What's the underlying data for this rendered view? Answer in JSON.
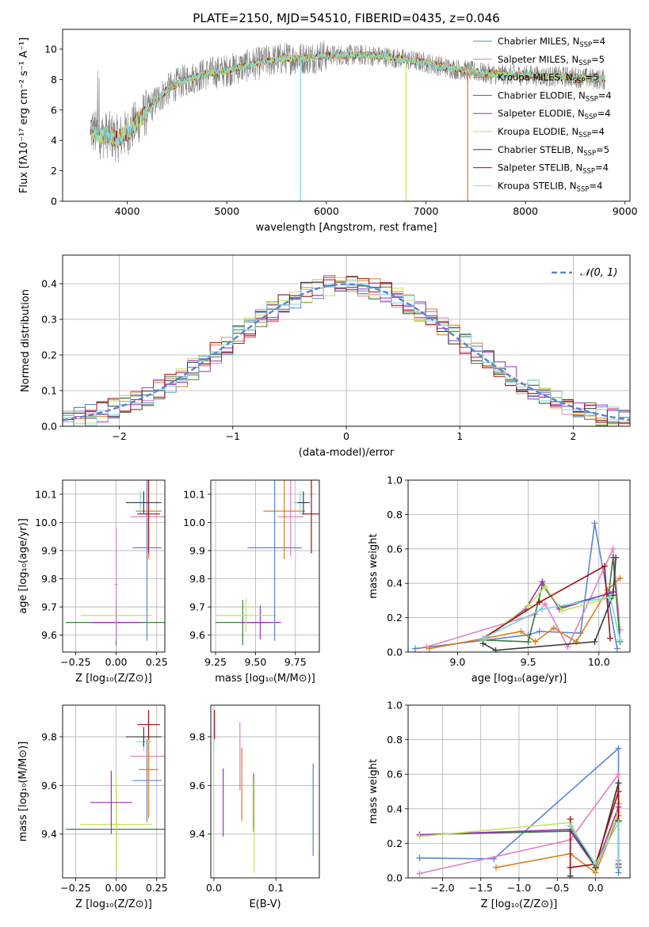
{
  "title": "PLATE=2150, MJD=54510, FIBERID=0435, z=0.046",
  "colors": {
    "chabrier_miles": "#5b84d6",
    "salpeter_miles": "#e27fbf",
    "kroupa_miles": "#e07b20",
    "chabrier_elodie": "#3e7a3e",
    "salpeter_elodie": "#9b2fbf",
    "kroupa_elodie": "#c8e25a",
    "chabrier_stelib": "#3a3a3a",
    "salpeter_stelib": "#a50f15",
    "kroupa_stelib": "#7fd6df",
    "data": "#808080",
    "normal": "#5b84d6"
  },
  "legend": [
    {
      "label": "Chabrier MILES, N",
      "sub": "SSP",
      "tail": "=4",
      "color": "#5b84d6"
    },
    {
      "label": "Salpeter MILES, N",
      "sub": "SSP",
      "tail": "=5",
      "color": "#e27fbf"
    },
    {
      "label": "Kroupa MILES, N",
      "sub": "SSP",
      "tail": "=5",
      "color": "#e07b20"
    },
    {
      "label": "Chabrier ELODIE, N",
      "sub": "SSP",
      "tail": "=4",
      "color": "#3e7a3e"
    },
    {
      "label": "Salpeter ELODIE, N",
      "sub": "SSP",
      "tail": "=4",
      "color": "#9b2fbf"
    },
    {
      "label": "Kroupa ELODIE, N",
      "sub": "SSP",
      "tail": "=4",
      "color": "#c8e25a"
    },
    {
      "label": "Chabrier STELIB, N",
      "sub": "SSP",
      "tail": "=5",
      "color": "#3a3a3a"
    },
    {
      "label": "Salpeter STELIB, N",
      "sub": "SSP",
      "tail": "=4",
      "color": "#a50f15"
    },
    {
      "label": "Kroupa STELIB, N",
      "sub": "SSP",
      "tail": "=4",
      "color": "#7fd6df"
    }
  ],
  "chart_data": [
    {
      "id": "spectrum",
      "type": "line",
      "xlabel": "wavelength [Angstrom, rest frame]",
      "ylabel": "Flux [fλ10⁻¹⁷ erg cm⁻² s⁻¹ A⁻¹]",
      "xlim": [
        3350,
        9050
      ],
      "ylim": [
        0,
        11.3
      ],
      "xticks": [
        4000,
        5000,
        6000,
        7000,
        8000,
        9000
      ],
      "yticks": [
        0,
        2,
        4,
        6,
        8,
        10
      ],
      "continuum": {
        "x": [
          3630,
          3700,
          3800,
          3900,
          4000,
          4100,
          4200,
          4300,
          4400,
          4500,
          4600,
          4700,
          4800,
          4900,
          5000,
          5200,
          5400,
          5600,
          5800,
          6000,
          6200,
          6400,
          6600,
          6800,
          7000,
          7200,
          7400,
          7600,
          7800,
          8000,
          8200,
          8400,
          8600,
          8800
        ],
        "y": [
          4.8,
          4.3,
          4.4,
          4.1,
          4.5,
          5.2,
          5.9,
          6.7,
          7.3,
          7.7,
          8.0,
          8.2,
          8.4,
          8.5,
          8.6,
          8.9,
          9.2,
          9.4,
          9.4,
          9.6,
          9.6,
          9.6,
          9.5,
          9.3,
          9.1,
          8.8,
          8.6,
          8.4,
          8.3,
          8.3,
          8.2,
          8.2,
          8.1,
          8.0
        ]
      },
      "dips": [
        {
          "x": 5740,
          "color": "#7fd6df"
        },
        {
          "x": 6800,
          "color": "#c8e25a"
        },
        {
          "x": 7420,
          "color": "#e07b20"
        }
      ]
    },
    {
      "id": "residuals",
      "type": "histogram",
      "xlabel": "(data-model)/error",
      "ylabel": "Normed distribution",
      "xlim": [
        -2.5,
        2.5
      ],
      "ylim": [
        0,
        0.48
      ],
      "xticks": [
        -2,
        -1,
        0,
        1,
        2
      ],
      "yticks": [
        0.0,
        0.1,
        0.2,
        0.3,
        0.4
      ],
      "reference_label": "𝒩(0, 1)",
      "bin_width": 0.1
    },
    {
      "id": "age_vs_Z",
      "type": "errorbar",
      "xlabel": "Z [log₁₀(Z/Z⊙)]",
      "ylabel": "age  [log₁₀(age/yr)]",
      "xlim": [
        -0.33,
        0.3
      ],
      "ylim": [
        9.54,
        10.15
      ],
      "xticks": [
        -0.25,
        0.0,
        0.25
      ],
      "xtick_labels": [
        "−0.25",
        "0.00",
        "0.25"
      ],
      "yticks": [
        9.6,
        9.7,
        9.8,
        9.9,
        10.0,
        10.1
      ],
      "points": [
        {
          "x": 0.0,
          "y": 9.645,
          "xerr": 0.31,
          "yerr": 0.08,
          "color": "#3e7a3e"
        },
        {
          "x": 0.0,
          "y": 9.645,
          "xerr": 0.15,
          "yerr": 0.06,
          "color": "#9b2fbf"
        },
        {
          "x": 0.0,
          "y": 9.67,
          "xerr": 0.22,
          "yerr": 0.03,
          "color": "#c8e25a"
        },
        {
          "x": 0.0,
          "y": 9.78,
          "xerr": 0.01,
          "yerr": 0.2,
          "color": "#e27fbf"
        },
        {
          "x": 0.19,
          "y": 9.91,
          "xerr": 0.09,
          "yerr": 0.33,
          "color": "#5b84d6"
        },
        {
          "x": 0.2,
          "y": 10.02,
          "xerr": 0.11,
          "yerr": 0.14,
          "color": "#e27fbf"
        },
        {
          "x": 0.2,
          "y": 10.04,
          "xerr": 0.08,
          "yerr": 0.17,
          "color": "#e07b20"
        },
        {
          "x": 0.15,
          "y": 10.07,
          "xerr": 0.07,
          "yerr": 0.04,
          "color": "#7fd6df"
        },
        {
          "x": 0.17,
          "y": 10.07,
          "xerr": 0.11,
          "yerr": 0.04,
          "color": "#3a3a3a"
        },
        {
          "x": 0.2,
          "y": 10.03,
          "xerr": 0.07,
          "yerr": 0.14,
          "color": "#a50f15"
        }
      ]
    },
    {
      "id": "age_vs_mass",
      "type": "errorbar",
      "xlabel": "mass [log₁₀(M/M⊙)]",
      "ylabel": "",
      "xlim": [
        9.22,
        9.9
      ],
      "ylim": [
        9.54,
        10.15
      ],
      "xticks": [
        9.25,
        9.5,
        9.75
      ],
      "xtick_labels": [
        "9.25",
        "9.50",
        "9.75"
      ],
      "yticks": [
        9.6,
        9.7,
        9.8,
        9.9,
        10.0,
        10.1
      ],
      "points": [
        {
          "x": 9.42,
          "y": 9.645,
          "xerr": 0.17,
          "yerr": 0.08,
          "color": "#3e7a3e"
        },
        {
          "x": 9.53,
          "y": 9.645,
          "xerr": 0.13,
          "yerr": 0.06,
          "color": "#9b2fbf"
        },
        {
          "x": 9.44,
          "y": 9.67,
          "xerr": 0.19,
          "yerr": 0.06,
          "color": "#c8e25a"
        },
        {
          "x": 9.62,
          "y": 9.91,
          "xerr": 0.17,
          "yerr": 0.33,
          "color": "#5b84d6"
        },
        {
          "x": 9.72,
          "y": 10.02,
          "xerr": 0.08,
          "yerr": 0.14,
          "color": "#e27fbf"
        },
        {
          "x": 9.68,
          "y": 10.04,
          "xerr": 0.13,
          "yerr": 0.17,
          "color": "#e07b20"
        },
        {
          "x": 9.78,
          "y": 10.07,
          "xerr": 0.05,
          "yerr": 0.04,
          "color": "#7fd6df"
        },
        {
          "x": 9.8,
          "y": 10.07,
          "xerr": 0.04,
          "yerr": 0.04,
          "color": "#3a3a3a"
        },
        {
          "x": 9.85,
          "y": 10.03,
          "xerr": 0.06,
          "yerr": 0.14,
          "color": "#a50f15"
        }
      ]
    },
    {
      "id": "mass_weight_vs_age",
      "type": "line",
      "xlabel": "age  [log₁₀(age/yr)]",
      "ylabel": "mass weight",
      "xlim": [
        8.65,
        10.22
      ],
      "ylim": [
        0,
        1.0
      ],
      "xticks": [
        9.0,
        9.5,
        10.0
      ],
      "yticks": [
        0.0,
        0.2,
        0.4,
        0.6,
        0.8,
        1.0
      ],
      "series": [
        {
          "color": "#5b84d6",
          "x": [
            8.7,
            9.5,
            9.58,
            9.87,
            9.97,
            10.13
          ],
          "y": [
            0.02,
            0.1,
            0.12,
            0.11,
            0.75,
            0.02
          ]
        },
        {
          "color": "#e27fbf",
          "x": [
            8.78,
            9.55,
            9.62,
            9.78,
            10.1,
            10.15
          ],
          "y": [
            0.03,
            0.22,
            0.28,
            0.03,
            0.6,
            0.13
          ]
        },
        {
          "color": "#e07b20",
          "x": [
            8.8,
            9.45,
            9.55,
            9.68,
            9.84,
            10.06,
            10.15
          ],
          "y": [
            0.02,
            0.12,
            0.06,
            0.14,
            0.06,
            0.36,
            0.43
          ]
        },
        {
          "color": "#3e7a3e",
          "x": [
            9.18,
            9.5,
            9.6,
            9.72,
            10.07,
            10.1,
            10.15
          ],
          "y": [
            0.07,
            0.06,
            0.39,
            0.26,
            0.34,
            0.55,
            0.06
          ]
        },
        {
          "color": "#9b2fbf",
          "x": [
            9.18,
            9.48,
            9.6,
            9.72,
            10.1
          ],
          "y": [
            0.07,
            0.25,
            0.41,
            0.25,
            0.35
          ]
        },
        {
          "color": "#c8e25a",
          "x": [
            9.18,
            9.5,
            9.62,
            9.74,
            10.1
          ],
          "y": [
            0.07,
            0.27,
            0.38,
            0.24,
            0.32
          ]
        },
        {
          "color": "#3a3a3a",
          "x": [
            9.18,
            9.27,
            9.97,
            10.1,
            10.12
          ],
          "y": [
            0.05,
            0.01,
            0.06,
            0.33,
            0.55
          ]
        },
        {
          "color": "#a50f15",
          "x": [
            9.18,
            9.58,
            10.04,
            10.08
          ],
          "y": [
            0.08,
            0.29,
            0.5,
            0.08
          ]
        },
        {
          "color": "#7fd6df",
          "x": [
            9.18,
            9.6,
            10.08,
            10.15
          ],
          "y": [
            0.08,
            0.25,
            0.32,
            0.07
          ]
        }
      ]
    },
    {
      "id": "mass_vs_Z",
      "type": "errorbar",
      "xlabel": "Z [log₁₀(Z/Z⊙)]",
      "ylabel": "mass [log₁₀(M/M⊙)]",
      "xlim": [
        -0.33,
        0.3
      ],
      "ylim": [
        9.22,
        9.93
      ],
      "xticks": [
        -0.25,
        0.0,
        0.25
      ],
      "xtick_labels": [
        "−0.25",
        "0.00",
        "0.25"
      ],
      "yticks": [
        9.4,
        9.6,
        9.8
      ],
      "points": [
        {
          "x": 0.0,
          "y": 9.42,
          "xerr": 0.31,
          "yerr": 0.17,
          "color": "#3e7a3e"
        },
        {
          "x": 0.0,
          "y": 9.44,
          "xerr": 0.22,
          "yerr": 0.19,
          "color": "#c8e25a"
        },
        {
          "x": -0.03,
          "y": 9.53,
          "xerr": 0.13,
          "yerr": 0.13,
          "color": "#9b2fbf"
        },
        {
          "x": 0.19,
          "y": 9.62,
          "xerr": 0.09,
          "yerr": 0.17,
          "color": "#5b84d6"
        },
        {
          "x": 0.2,
          "y": 9.72,
          "xerr": 0.11,
          "yerr": 0.08,
          "color": "#e27fbf"
        },
        {
          "x": 0.2,
          "y": 9.665,
          "xerr": 0.06,
          "yerr": 0.2,
          "color": "#e07b20"
        },
        {
          "x": 0.17,
          "y": 9.78,
          "xerr": 0.05,
          "yerr": 0.04,
          "color": "#7fd6df"
        },
        {
          "x": 0.17,
          "y": 9.8,
          "xerr": 0.11,
          "yerr": 0.04,
          "color": "#3a3a3a"
        },
        {
          "x": 0.2,
          "y": 9.85,
          "xerr": 0.07,
          "yerr": 0.06,
          "color": "#a50f15"
        }
      ]
    },
    {
      "id": "mass_vs_ebv",
      "type": "errorbar",
      "xlabel": "E(B-V)",
      "ylabel": "",
      "xlim": [
        -0.005,
        0.17
      ],
      "ylim": [
        9.22,
        9.93
      ],
      "xticks": [
        0.0,
        0.1
      ],
      "xtick_labels": [
        "0.0",
        "0.1"
      ],
      "yticks": [
        9.4,
        9.6,
        9.8
      ],
      "points": [
        {
          "x": 0.0,
          "y": 9.78,
          "xerr": 0,
          "yerr": 0.04,
          "color": "#7fd6df"
        },
        {
          "x": 0.001,
          "y": 9.85,
          "xerr": 0,
          "yerr": 0.06,
          "color": "#a50f15"
        },
        {
          "x": 0.015,
          "y": 9.53,
          "xerr": 0,
          "yerr": 0.14,
          "color": "#9b2fbf"
        },
        {
          "x": 0.042,
          "y": 9.72,
          "xerr": 0,
          "yerr": 0.14,
          "color": "#e27fbf"
        },
        {
          "x": 0.045,
          "y": 9.605,
          "xerr": 0,
          "yerr": 0.15,
          "color": "#e07b20"
        },
        {
          "x": 0.064,
          "y": 9.53,
          "xerr": 0,
          "yerr": 0.12,
          "color": "#3e7a3e"
        },
        {
          "x": 0.065,
          "y": 9.43,
          "xerr": 0,
          "yerr": 0.19,
          "color": "#c8e25a"
        },
        {
          "x": 0.16,
          "y": 9.5,
          "xerr": 0,
          "yerr": 0.19,
          "color": "#5b84d6"
        }
      ]
    },
    {
      "id": "mass_weight_vs_Z",
      "type": "line",
      "xlabel": "Z [log₁₀(Z/Z⊙)]",
      "ylabel": "mass weight",
      "xlim": [
        -2.45,
        0.45
      ],
      "ylim": [
        0,
        1.0
      ],
      "xticks": [
        -2.0,
        -1.5,
        -1.0,
        -0.5,
        0.0
      ],
      "xtick_labels": [
        "−2.0",
        "−1.5",
        "−1.0",
        "−0.5",
        "0.0"
      ],
      "yticks": [
        0.0,
        0.2,
        0.4,
        0.6,
        0.8,
        1.0
      ],
      "series": [
        {
          "color": "#5b84d6",
          "x": [
            -2.3,
            -1.33,
            0.3,
            0.3
          ],
          "y": [
            0.115,
            0.11,
            0.75,
            0.03
          ]
        },
        {
          "color": "#e27fbf",
          "x": [
            -2.3,
            -0.33,
            0.3,
            0.3
          ],
          "y": [
            0.025,
            0.22,
            0.6,
            0.1
          ]
        },
        {
          "color": "#e07b20",
          "x": [
            -1.3,
            -0.33,
            0.0,
            0.3,
            0.3
          ],
          "y": [
            0.06,
            0.14,
            0.03,
            0.36,
            0.43
          ]
        },
        {
          "color": "#3e7a3e",
          "x": [
            -2.3,
            -0.33,
            0.0,
            0.3,
            0.3
          ],
          "y": [
            0.25,
            0.27,
            0.06,
            0.55,
            0.06
          ]
        },
        {
          "color": "#9b2fbf",
          "x": [
            -2.3,
            -0.33,
            0.0,
            0.3
          ],
          "y": [
            0.25,
            0.28,
            0.06,
            0.41
          ]
        },
        {
          "color": "#c8e25a",
          "x": [
            -2.3,
            -0.33,
            0.0,
            0.3
          ],
          "y": [
            0.24,
            0.32,
            0.05,
            0.38
          ]
        },
        {
          "color": "#3a3a3a",
          "x": [
            -0.33,
            -0.33,
            0.0,
            0.3,
            0.3
          ],
          "y": [
            0.01,
            0.3,
            0.06,
            0.55,
            0.33
          ]
        },
        {
          "color": "#a50f15",
          "x": [
            -0.33,
            -0.33,
            0.0,
            0.3,
            0.3
          ],
          "y": [
            0.34,
            0.06,
            0.08,
            0.5,
            0.08
          ]
        },
        {
          "color": "#7fd6df",
          "x": [
            -0.33,
            0.0,
            0.3,
            0.3
          ],
          "y": [
            0.3,
            0.08,
            0.32,
            0.07
          ]
        }
      ]
    }
  ]
}
